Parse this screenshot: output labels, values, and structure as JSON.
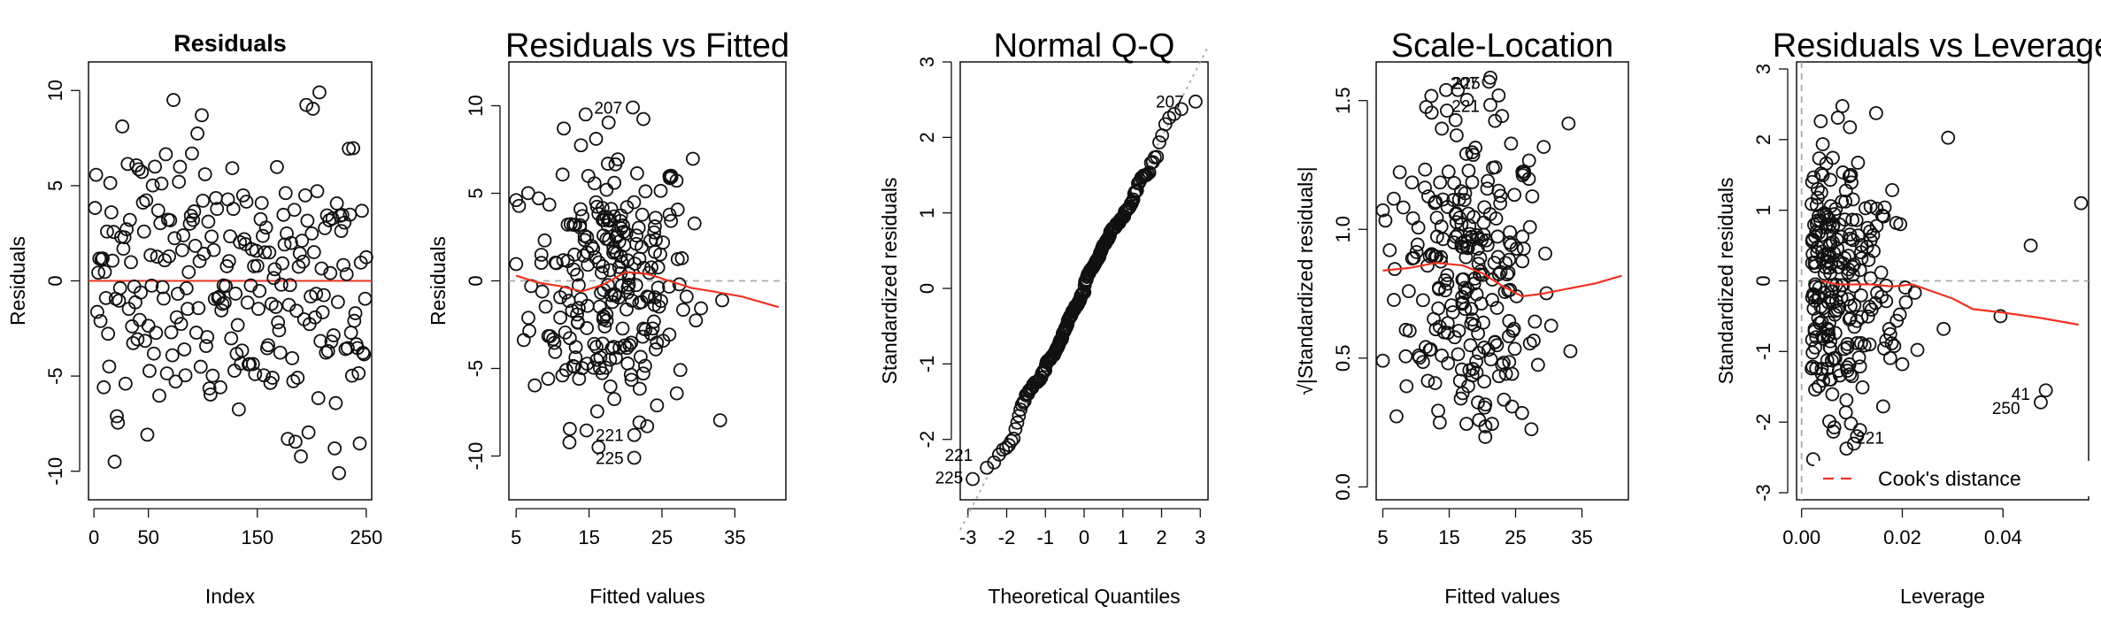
{
  "colors": {
    "points": "#111111",
    "smooth": "#ee3322",
    "refline": "#aaaaaa",
    "axis": "#111111"
  },
  "chart_data": [
    {
      "type": "scatter",
      "title": "Residuals",
      "xlabel": "Index",
      "ylabel": "Residuals",
      "xlim": [
        -5,
        255
      ],
      "ylim": [
        -11.5,
        11.5
      ],
      "xticks": [
        0,
        50,
        150,
        250
      ],
      "xtick_labels": [
        "0",
        "50",
        "150",
        "250"
      ],
      "yticks": [
        -10,
        -5,
        0,
        5,
        10
      ],
      "ytick_labels": [
        "-10",
        "-5",
        "0",
        "5",
        "10"
      ],
      "reference_line": {
        "y": 0,
        "style": "solid-red"
      },
      "points": [],
      "annotations": []
    },
    {
      "type": "scatter",
      "title": "Residuals vs Fitted",
      "xlabel": "Fitted values",
      "ylabel": "Residuals",
      "xlim": [
        4,
        42
      ],
      "ylim": [
        -12.5,
        12.5
      ],
      "xticks": [
        5,
        15,
        25,
        35
      ],
      "xtick_labels": [
        "5",
        "15",
        "25",
        "35"
      ],
      "yticks": [
        -10,
        -5,
        0,
        5,
        10
      ],
      "ytick_labels": [
        "-10",
        "-5",
        "0",
        "5",
        "10"
      ],
      "reference_line": {
        "y": 0,
        "style": "dashed-gray"
      },
      "smoother": [
        [
          5,
          0.3
        ],
        [
          8,
          -0.1
        ],
        [
          11,
          -0.3
        ],
        [
          14,
          -0.6
        ],
        [
          17,
          -0.2
        ],
        [
          20,
          0.5
        ],
        [
          23,
          0.4
        ],
        [
          26,
          0.0
        ],
        [
          29,
          -0.4
        ],
        [
          32,
          -0.6
        ],
        [
          36,
          -0.9
        ],
        [
          41,
          -1.5
        ]
      ],
      "points": [],
      "annotations": [
        {
          "text": "207",
          "x": 21.0,
          "y": 9.9
        },
        {
          "text": "221",
          "x": 21.2,
          "y": -8.8
        },
        {
          "text": "225",
          "x": 21.2,
          "y": -10.1
        }
      ]
    },
    {
      "type": "scatter",
      "title": "Normal Q-Q",
      "xlabel": "Theoretical Quantiles",
      "ylabel": "Standardized residuals",
      "xlim": [
        -3.2,
        3.2
      ],
      "ylim": [
        -2.8,
        3.0
      ],
      "xticks": [
        -3,
        -2,
        -1,
        0,
        1,
        2,
        3
      ],
      "xtick_labels": [
        "-3",
        "-2",
        "-1",
        "0",
        "1",
        "2",
        "3"
      ],
      "yticks": [
        -2,
        -1,
        0,
        1,
        2,
        3
      ],
      "ytick_labels": [
        "-2",
        "-1",
        "0",
        "1",
        "2",
        "3"
      ],
      "reference_line": {
        "slope": 1,
        "intercept": 0,
        "style": "dotted-gray"
      },
      "points": [],
      "annotations": [
        {
          "text": "207",
          "x": 2.85,
          "y": 2.48
        },
        {
          "text": "221",
          "x": -2.6,
          "y": -2.2
        },
        {
          "text": "225",
          "x": -2.85,
          "y": -2.5
        }
      ]
    },
    {
      "type": "scatter",
      "title": "Scale-Location",
      "xlabel": "Fitted values",
      "ylabel": "√|Standardized residuals|",
      "xlim": [
        4,
        42
      ],
      "ylim": [
        -0.05,
        1.65
      ],
      "xticks": [
        5,
        15,
        25,
        35
      ],
      "xtick_labels": [
        "5",
        "15",
        "25",
        "35"
      ],
      "yticks": [
        0.0,
        0.5,
        1.0,
        1.5
      ],
      "ytick_labels": [
        "0.0",
        "0.5",
        "1.0",
        "1.5"
      ],
      "smoother": [
        [
          5,
          0.84
        ],
        [
          9,
          0.85
        ],
        [
          13,
          0.87
        ],
        [
          17,
          0.86
        ],
        [
          20,
          0.83
        ],
        [
          23,
          0.78
        ],
        [
          26,
          0.74
        ],
        [
          29,
          0.75
        ],
        [
          33,
          0.77
        ],
        [
          37,
          0.79
        ],
        [
          41,
          0.82
        ]
      ],
      "points": [],
      "annotations": [
        {
          "text": "207",
          "x": 21.0,
          "y": 1.57
        },
        {
          "text": "225",
          "x": 21.3,
          "y": 1.57
        },
        {
          "text": "221",
          "x": 21.2,
          "y": 1.48
        }
      ]
    },
    {
      "type": "scatter",
      "title": "Residuals vs Leverage",
      "xlabel": "Leverage",
      "ylabel": "Standardized residuals",
      "xlim": [
        -0.001,
        0.057
      ],
      "ylim": [
        -3.1,
        3.1
      ],
      "xticks": [
        0.0,
        0.02,
        0.04
      ],
      "xtick_labels": [
        "0.00",
        "0.02",
        "0.04"
      ],
      "yticks": [
        -3,
        -2,
        -1,
        0,
        1,
        2,
        3
      ],
      "ytick_labels": [
        "-3",
        "-2",
        "-1",
        "0",
        "1",
        "2",
        "3"
      ],
      "reference_line": {
        "y": 0,
        "x": 0,
        "style": "dashed-gray"
      },
      "smoother": [
        [
          0.004,
          0.0
        ],
        [
          0.007,
          -0.05
        ],
        [
          0.01,
          -0.05
        ],
        [
          0.014,
          -0.05
        ],
        [
          0.018,
          -0.08
        ],
        [
          0.022,
          -0.05
        ],
        [
          0.026,
          -0.15
        ],
        [
          0.03,
          -0.25
        ],
        [
          0.034,
          -0.4
        ],
        [
          0.04,
          -0.45
        ],
        [
          0.047,
          -0.52
        ],
        [
          0.055,
          -0.62
        ]
      ],
      "legend": {
        "text": "Cook's distance",
        "placement": "bottom-right"
      },
      "points": [],
      "annotations": [
        {
          "text": "41",
          "x": 0.0475,
          "y": -1.6
        },
        {
          "text": "250",
          "x": 0.0455,
          "y": -1.8
        },
        {
          "text": "221",
          "x": 0.0185,
          "y": -2.22
        }
      ]
    }
  ]
}
